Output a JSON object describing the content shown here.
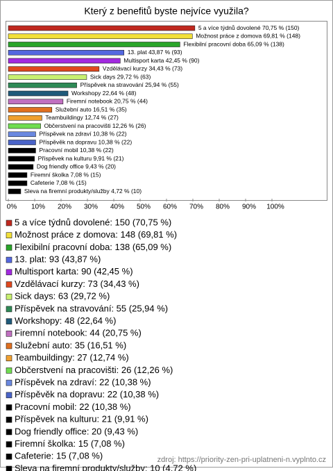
{
  "chart_data": {
    "type": "bar",
    "orientation": "horizontal",
    "title": "Který z benefitů byste nejvíce využila?",
    "values": [
      70.75,
      69.81,
      65.09,
      43.87,
      42.45,
      34.43,
      29.72,
      25.94,
      22.64,
      20.75,
      16.51,
      12.74,
      12.26,
      10.38,
      10.38,
      10.38,
      9.91,
      9.43,
      7.08,
      7.08,
      4.72
    ],
    "value_labels": [
      "5 a více týdnů dovolené 70,75 % (150)",
      "Možnost práce z domova 69,81 % (148)",
      "Flexibilní pracovní doba 65,09 % (138)",
      "13. plat 43,87 % (93)",
      "Multisport karta 42,45 % (90)",
      "Vzdělávací kurzy 34,43 % (73)",
      "Sick days 29,72 % (63)",
      "Příspěvek na stravování 25,94 % (55)",
      "Workshopy 22,64 % (48)",
      "Firemní notebook 20,75 % (44)",
      "Služební auto 16,51 % (35)",
      "Teambuildingy 12,74 % (27)",
      "Občerstvení na pracovišti 12,26 % (26)",
      "Příspěvek na zdraví 10,38 % (22)",
      "Příspěvěk na dopravu 10,38 % (22)",
      "Pracovní mobil 10,38 % (22)",
      "Příspěvek na kulturu 9,91 % (21)",
      "Dog friendly office 9,43 % (20)",
      "Firemní školka 7,08 % (15)",
      "Cafeterie 7,08 % (15)",
      "Sleva na firemní produkty/služby 4,72 % (10)"
    ],
    "legend_labels": [
      "5 a více týdnů dovolené: 150 (70,75 %)",
      "Možnost práce z domova: 148 (69,81 %)",
      "Flexibilní pracovní doba: 138 (65,09 %)",
      "13. plat: 93 (43,87 %)",
      "Multisport karta: 90 (42,45 %)",
      "Vzdělávací kurzy: 73 (34,43 %)",
      "Sick days: 63 (29,72 %)",
      "Příspěvek na stravování: 55 (25,94 %)",
      "Workshopy: 48 (22,64 %)",
      "Firemní notebook: 44 (20,75 %)",
      "Služební auto: 35 (16,51 %)",
      "Teambuildingy: 27 (12,74 %)",
      "Občerstvení na pracovišti: 26 (12,26 %)",
      "Příspěvek na zdraví: 22 (10,38 %)",
      "Příspěvěk na dopravu: 22 (10,38 %)",
      "Pracovní mobil: 22 (10,38 %)",
      "Příspěvek na kulturu: 21 (9,91 %)",
      "Dog friendly office: 20 (9,43 %)",
      "Firemní školka: 15 (7,08 %)",
      "Cafeterie: 15 (7,08 %)",
      "Sleva na firemní produkty/služby: 10 (4,72 %)"
    ],
    "colors": [
      "#c0281e",
      "#f2e03a",
      "#2aa52a",
      "#5468e0",
      "#a22ae0",
      "#e0481e",
      "#c8f070",
      "#2e8a56",
      "#1f5a7a",
      "#c070c0",
      "#e07020",
      "#f0a030",
      "#70dd50",
      "#6a88e0",
      "#4a64c8",
      "#000000",
      "#000000",
      "#000000",
      "#000000",
      "#000000",
      "#000000"
    ],
    "xlim": [
      0,
      100
    ],
    "xticks": [
      {
        "value": 0,
        "label": "0%"
      },
      {
        "value": 10,
        "label": "10%"
      },
      {
        "value": 20,
        "label": "20%"
      },
      {
        "value": 30,
        "label": "30%"
      },
      {
        "value": 40,
        "label": "40%"
      },
      {
        "value": 50,
        "label": "50%"
      },
      {
        "value": 60,
        "label": "60%"
      },
      {
        "value": 70,
        "label": "70%"
      },
      {
        "value": 80,
        "label": "80%"
      },
      {
        "value": 90,
        "label": "90%"
      },
      {
        "value": 100,
        "label": "100%"
      }
    ],
    "source": "zdroj: https://priority-zen-pri-uplatneni-n.vyplnto.cz"
  }
}
